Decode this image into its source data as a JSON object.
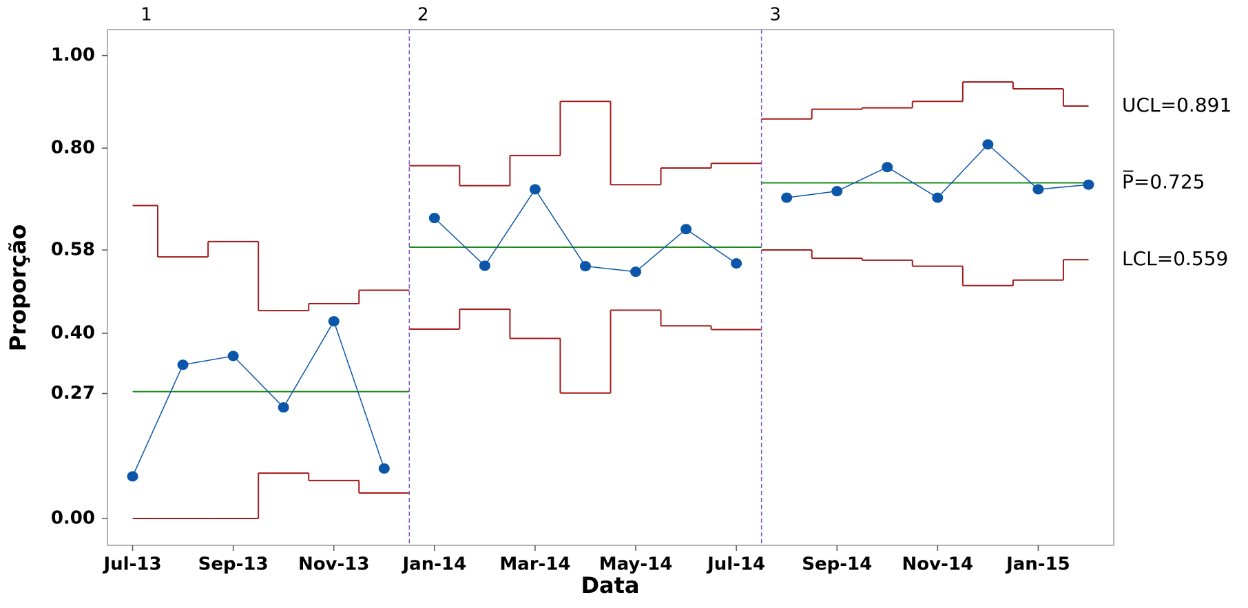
{
  "chart_data": {
    "type": "line",
    "x_label": "Data",
    "y_label": "Proporção",
    "categories": [
      "Jul-13",
      null,
      "Sep-13",
      null,
      "Nov-13",
      null,
      "Jan-14",
      null,
      "Mar-14",
      null,
      "May-14",
      null,
      "Jul-14",
      null,
      "Sep-14",
      null,
      "Nov-14",
      null,
      "Jan-15",
      null
    ],
    "values": [
      0.091,
      0.332,
      0.351,
      0.24,
      0.426,
      0.108,
      0.649,
      0.546,
      0.711,
      0.545,
      0.533,
      0.625,
      0.551,
      0.693,
      0.707,
      0.759,
      0.693,
      0.808,
      0.711,
      0.721
    ],
    "color": "#0b56a8",
    "ucl": [
      0.676,
      0.565,
      0.598,
      0.449,
      0.464,
      0.493,
      0.762,
      0.719,
      0.784,
      0.901,
      0.721,
      0.757,
      0.767,
      0.863,
      0.884,
      0.887,
      0.901,
      0.943,
      0.928,
      0.891
    ],
    "lcl": [
      0,
      0,
      0,
      0.098,
      0.082,
      0.055,
      0.409,
      0.452,
      0.389,
      0.271,
      0.45,
      0.416,
      0.408,
      0.58,
      0.562,
      0.558,
      0.545,
      0.503,
      0.515,
      0.559
    ],
    "center": [
      0.274,
      0.274,
      0.274,
      0.274,
      0.274,
      0.274,
      0.586,
      0.586,
      0.586,
      0.586,
      0.586,
      0.586,
      0.586,
      0.725,
      0.725,
      0.725,
      0.725,
      0.725,
      0.725,
      0.725
    ],
    "limit_color": "#a31a1a",
    "center_color": "#1a8a1a",
    "stage_line_color": "#7a55c8",
    "stage_labels": [
      "1",
      "2",
      "3"
    ],
    "limit_labels": {
      "ucl": "UCL=0.891",
      "center": "P̅=0.725",
      "lcl": "LCL=0.559"
    },
    "ylim": [
      -0.058,
      1.056
    ],
    "yticks": [
      {
        "value": 0,
        "label": "0.00"
      },
      {
        "value": 0.27,
        "label": "0.27"
      },
      {
        "value": 0.4,
        "label": "0.40"
      },
      {
        "value": 0.58,
        "label": "0.58"
      },
      {
        "value": 0.8,
        "label": "0.80"
      },
      {
        "value": 1,
        "label": "1.00"
      }
    ]
  }
}
